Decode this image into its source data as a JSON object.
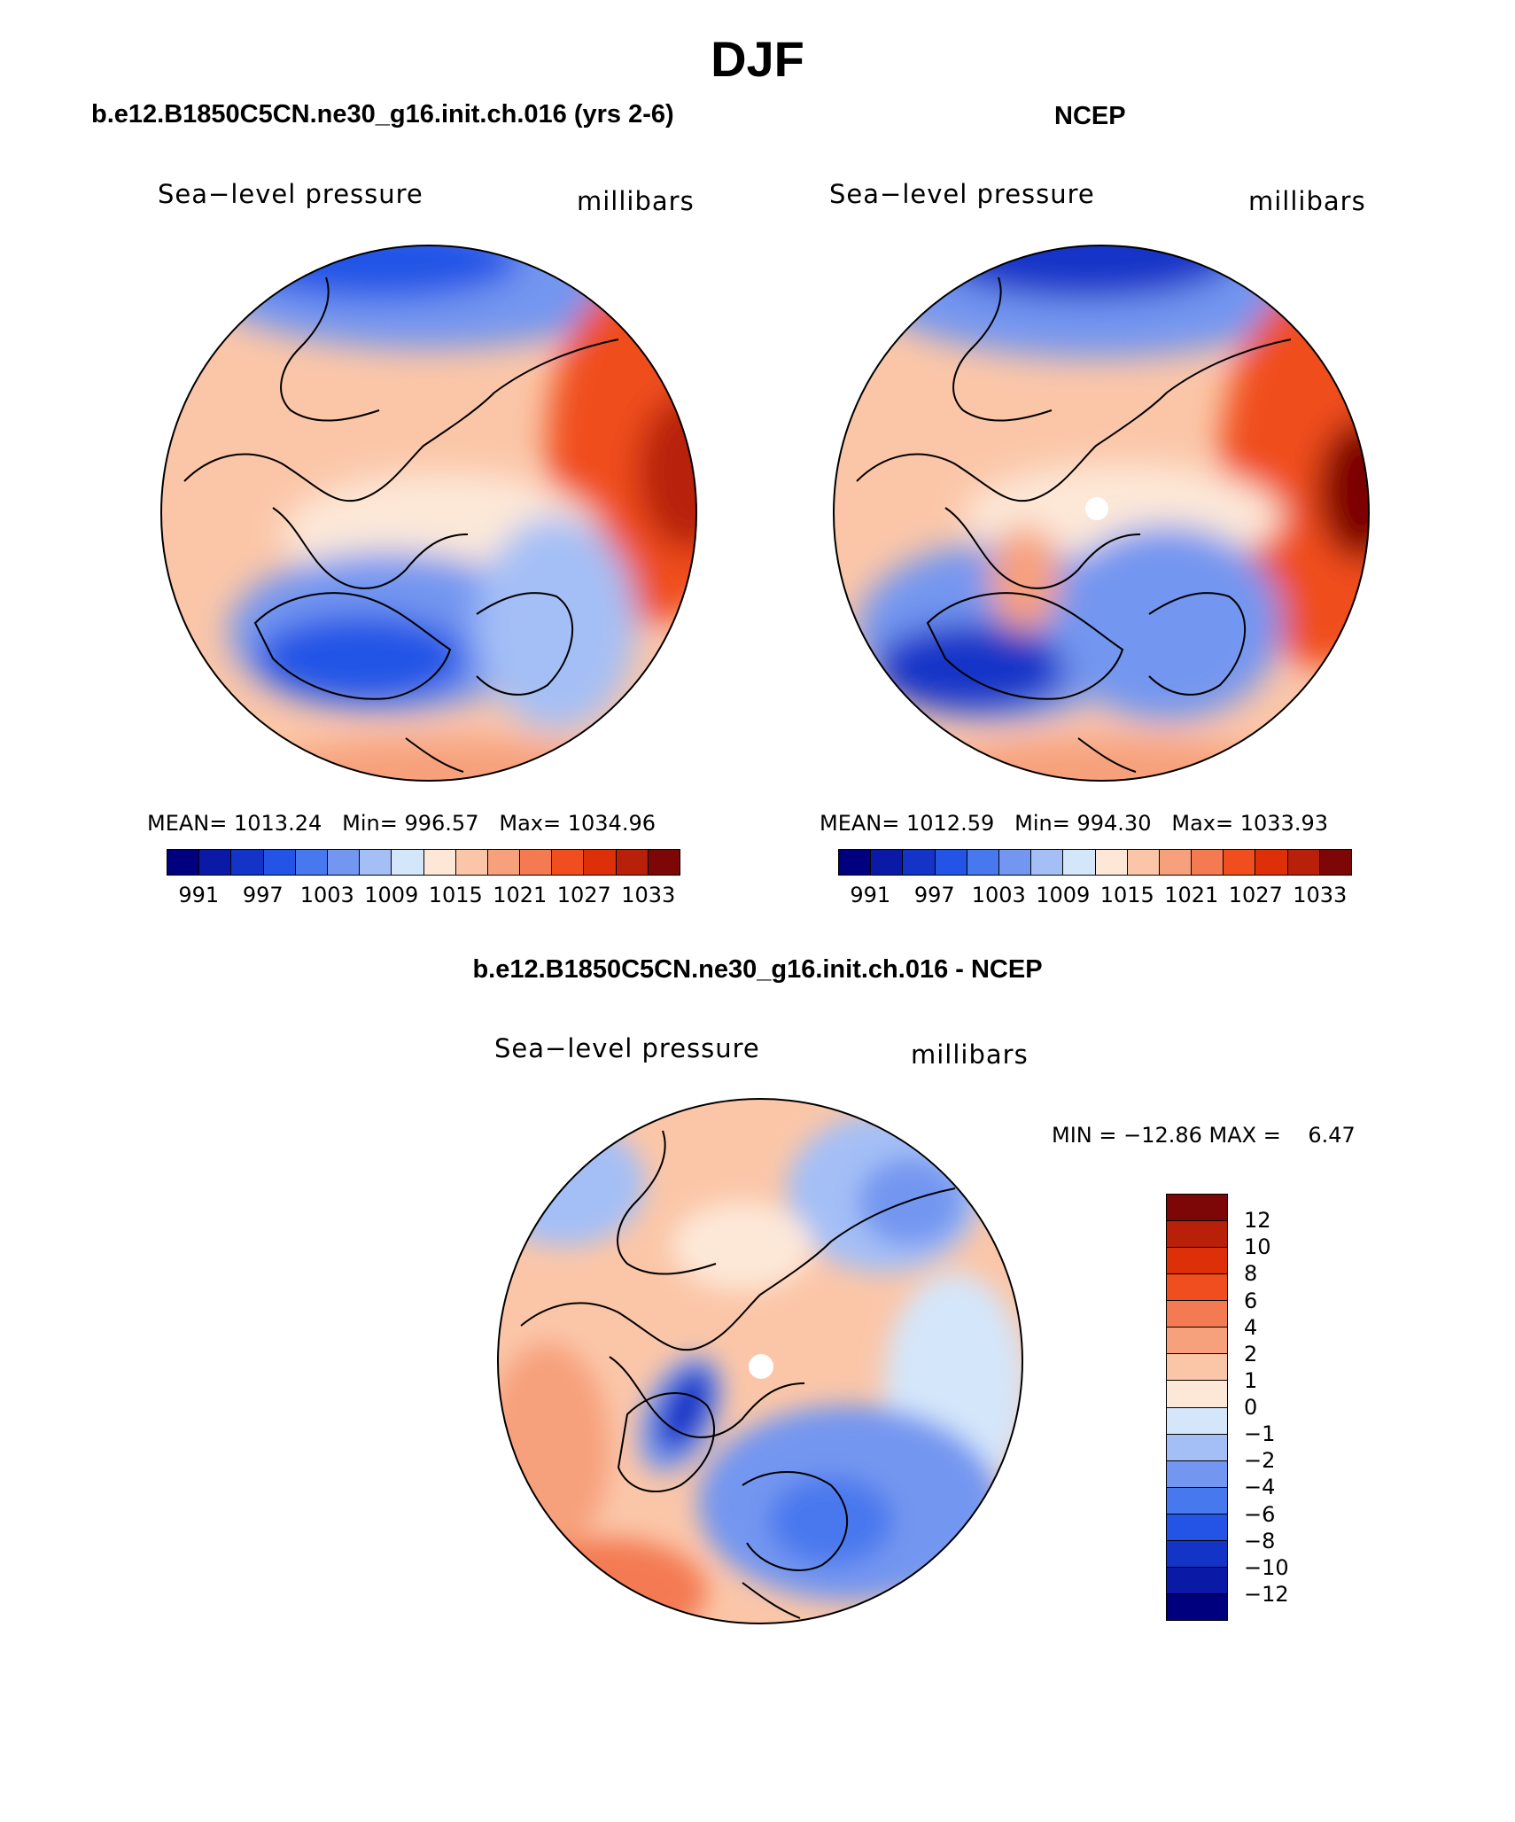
{
  "page": {
    "title": "DJF"
  },
  "panels": {
    "model": {
      "title": "b.e12.B1850C5CN.ne30_g16.init.ch.016 (yrs 2-6)",
      "field_label": "Sea−level pressure",
      "units_label": "millibars",
      "stats": {
        "mean_label": "MEAN=",
        "mean": "1013.24",
        "min_label": "Min=",
        "min": "996.57",
        "max_label": "Max=",
        "max": "1034.96"
      }
    },
    "obs": {
      "title": "NCEP",
      "field_label": "Sea−level pressure",
      "units_label": "millibars",
      "stats": {
        "mean_label": "MEAN=",
        "mean": "1012.59",
        "min_label": "Min=",
        "min": "994.30",
        "max_label": "Max=",
        "max": "1033.93"
      }
    },
    "diff": {
      "title": "b.e12.B1850C5CN.ne30_g16.init.ch.016 - NCEP",
      "field_label": "Sea−level pressure",
      "units_label": "millibars",
      "stats_text": "MIN = −12.86 MAX =    6.47"
    }
  },
  "abs_colorbar": {
    "colors": [
      "#00007f",
      "#0a1aa6",
      "#1434c8",
      "#2354e6",
      "#4878ee",
      "#7396f0",
      "#a4bff6",
      "#d4e6fa",
      "#fde8d8",
      "#fbc6a8",
      "#f7a07c",
      "#f47a52",
      "#f04e1e",
      "#dd3008",
      "#b8200a",
      "#7d0606"
    ],
    "tick_labels": [
      "991",
      "997",
      "1003",
      "1009",
      "1015",
      "1021",
      "1027",
      "1033"
    ]
  },
  "diff_colorbar": {
    "colors_top_to_bottom": [
      "#7d0606",
      "#b8200a",
      "#dd3008",
      "#f04e1e",
      "#f47a52",
      "#f7a07c",
      "#fbc6a8",
      "#fde8d8",
      "#d4e6fa",
      "#a4bff6",
      "#7396f0",
      "#4878ee",
      "#2354e6",
      "#1434c8",
      "#0a1aa6",
      "#00007f"
    ],
    "tick_labels_top_to_bottom": [
      "12",
      "10",
      "8",
      "6",
      "4",
      "2",
      "1",
      "0",
      "−1",
      "−2",
      "−4",
      "−6",
      "−8",
      "−10",
      "−12"
    ]
  },
  "chart_data": [
    {
      "type": "heatmap",
      "title": "b.e12.B1850C5CN.ne30_g16.init.ch.016 (yrs 2-6)",
      "variable": "Sea-level pressure",
      "units": "millibars",
      "projection": "polar stereographic, North Pole",
      "contour_levels": [
        991,
        994,
        997,
        1000,
        1003,
        1006,
        1009,
        1012,
        1015,
        1018,
        1021,
        1024,
        1027,
        1030,
        1033
      ],
      "mean": 1013.24,
      "min": 996.57,
      "max": 1034.96
    },
    {
      "type": "heatmap",
      "title": "NCEP",
      "variable": "Sea-level pressure",
      "units": "millibars",
      "projection": "polar stereographic, North Pole",
      "contour_levels": [
        991,
        994,
        997,
        1000,
        1003,
        1006,
        1009,
        1012,
        1015,
        1018,
        1021,
        1024,
        1027,
        1030,
        1033
      ],
      "mean": 1012.59,
      "min": 994.3,
      "max": 1033.93
    },
    {
      "type": "heatmap",
      "title": "b.e12.B1850C5CN.ne30_g16.init.ch.016 - NCEP",
      "variable": "Sea-level pressure difference",
      "units": "millibars",
      "projection": "polar stereographic, North Pole",
      "contour_levels": [
        -12,
        -10,
        -8,
        -6,
        -4,
        -2,
        -1,
        0,
        1,
        2,
        4,
        6,
        8,
        10,
        12
      ],
      "min": -12.86,
      "max": 6.47
    }
  ]
}
